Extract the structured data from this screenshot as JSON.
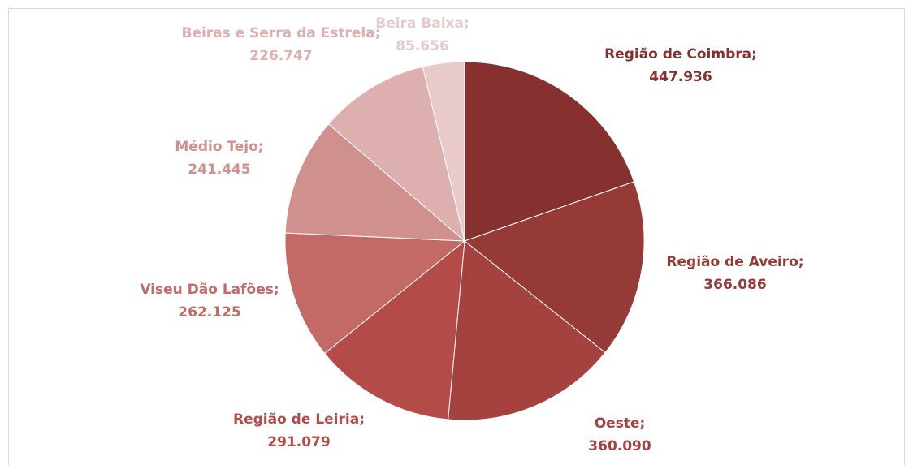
{
  "chart_data": {
    "type": "pie",
    "categories": [
      "Região de Coimbra;",
      "Região de Aveiro;",
      "Oeste;",
      "Região de Leiria;",
      "Viseu Dão Lafões;",
      "Médio Tejo;",
      "Beiras e Serra da Estrela;",
      "Beira Baixa;"
    ],
    "values": [
      447936,
      366086,
      360090,
      291079,
      262125,
      241445,
      226747,
      85656
    ],
    "value_labels": [
      "447.936",
      "366.086",
      "360.090",
      "291.079",
      "262.125",
      "241.445",
      "226.747",
      "85.656"
    ],
    "colors": [
      "#86312f",
      "#963a37",
      "#a5423f",
      "#b54b48",
      "#c36a67",
      "#d0908e",
      "#ddb0af",
      "#e9cacb"
    ]
  }
}
